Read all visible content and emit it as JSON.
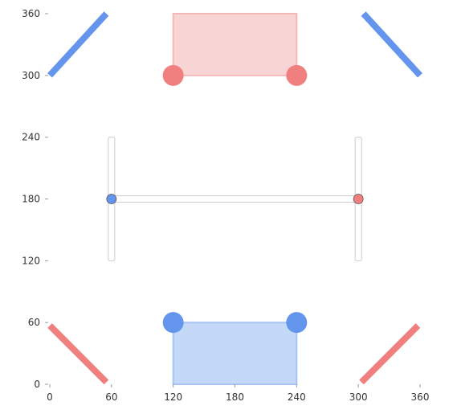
{
  "chart_data": {
    "type": "scatter",
    "title": "",
    "xlabel": "",
    "ylabel": "",
    "xlim": [
      0,
      360
    ],
    "ylim": [
      0,
      360
    ],
    "x_ticks": [
      "0",
      "60",
      "120",
      "180",
      "240",
      "300",
      "360"
    ],
    "y_ticks": [
      "0",
      "60",
      "120",
      "180",
      "240",
      "300",
      "360"
    ],
    "grid": false,
    "legend": "none",
    "colors": {
      "blue": "#6495ed",
      "red": "#f08080",
      "blue_fill": "#c4d8f7",
      "blue_fill_stroke": "#a8c4f2",
      "red_fill": "#f9d4d4",
      "red_fill_stroke": "#f4b8b8",
      "box_stroke": "#cccccc"
    },
    "segments": [
      {
        "x1": 0,
        "y1": 300,
        "x2": 55,
        "y2": 360,
        "color": "blue"
      },
      {
        "x1": 305,
        "y1": 360,
        "x2": 360,
        "y2": 300,
        "color": "blue"
      },
      {
        "x1": 0,
        "y1": 57,
        "x2": 55,
        "y2": 2,
        "color": "red"
      },
      {
        "x1": 303,
        "y1": 2,
        "x2": 358,
        "y2": 57,
        "color": "red"
      }
    ],
    "rects": [
      {
        "x": 120,
        "y": 300,
        "width": 120,
        "height": 60,
        "fill": "red_fill",
        "stroke": "red_fill_stroke"
      },
      {
        "x": 120,
        "y": 0,
        "width": 120,
        "height": 60,
        "fill": "blue_fill",
        "stroke": "blue_fill_stroke"
      }
    ],
    "points": [
      {
        "x": 120,
        "y": 300,
        "color": "red",
        "size": "large"
      },
      {
        "x": 240,
        "y": 300,
        "color": "red",
        "size": "large"
      },
      {
        "x": 120,
        "y": 60,
        "color": "blue",
        "size": "large"
      },
      {
        "x": 240,
        "y": 60,
        "color": "blue",
        "size": "large"
      },
      {
        "x": 60,
        "y": 180,
        "color": "blue",
        "size": "small"
      },
      {
        "x": 300,
        "y": 180,
        "color": "red",
        "size": "small"
      }
    ],
    "boxes": [
      {
        "x1": 60,
        "y1": 120,
        "x2": 60,
        "y2": 240,
        "color": "box_stroke"
      },
      {
        "x1": 300,
        "y1": 120,
        "x2": 300,
        "y2": 240,
        "color": "box_stroke"
      },
      {
        "x1": 60,
        "y1": 180,
        "x2": 300,
        "y2": 180,
        "color": "box_stroke"
      }
    ]
  }
}
